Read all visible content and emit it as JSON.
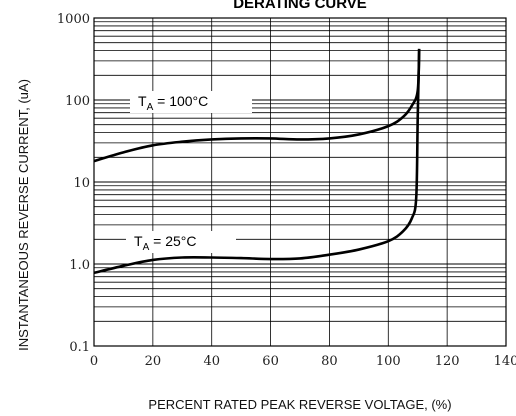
{
  "chart_data": {
    "type": "line",
    "title": "DERATING CURVE",
    "xlabel": "PERCENT RATED PEAK REVERSE VOLTAGE, (%)",
    "ylabel": "INSTANTANEOUS REVERSE CURRENT, (uA)",
    "xlim": [
      0,
      140
    ],
    "ylim": [
      0.1,
      1000
    ],
    "yscale": "log",
    "grid": "y-minor-log",
    "x_ticks": [
      "0",
      "20",
      "40",
      "60",
      "80",
      "100",
      "120",
      "140"
    ],
    "y_ticks": [
      "0.1",
      "1.0",
      "10",
      "100",
      "1000"
    ],
    "series": [
      {
        "name": "T_A = 100°C",
        "label_main": "T",
        "label_sub": "A",
        "label_rest": " = 100°C",
        "x": [
          0,
          10,
          20,
          30,
          40,
          50,
          60,
          70,
          80,
          90,
          100,
          105,
          108,
          110,
          110.5
        ],
        "y": [
          18,
          23,
          28,
          31,
          33,
          34,
          34,
          33,
          34,
          38,
          48,
          62,
          85,
          130,
          420
        ]
      },
      {
        "name": "T_A = 25°C",
        "label_main": "T",
        "label_sub": "A",
        "label_rest": " = 25°C",
        "x": [
          0,
          10,
          20,
          30,
          40,
          50,
          60,
          70,
          80,
          90,
          100,
          105,
          108,
          109.5,
          110,
          110.5
        ],
        "y": [
          0.78,
          0.95,
          1.12,
          1.2,
          1.2,
          1.18,
          1.15,
          1.17,
          1.3,
          1.5,
          1.9,
          2.5,
          3.6,
          6.5,
          60,
          420
        ]
      }
    ]
  }
}
